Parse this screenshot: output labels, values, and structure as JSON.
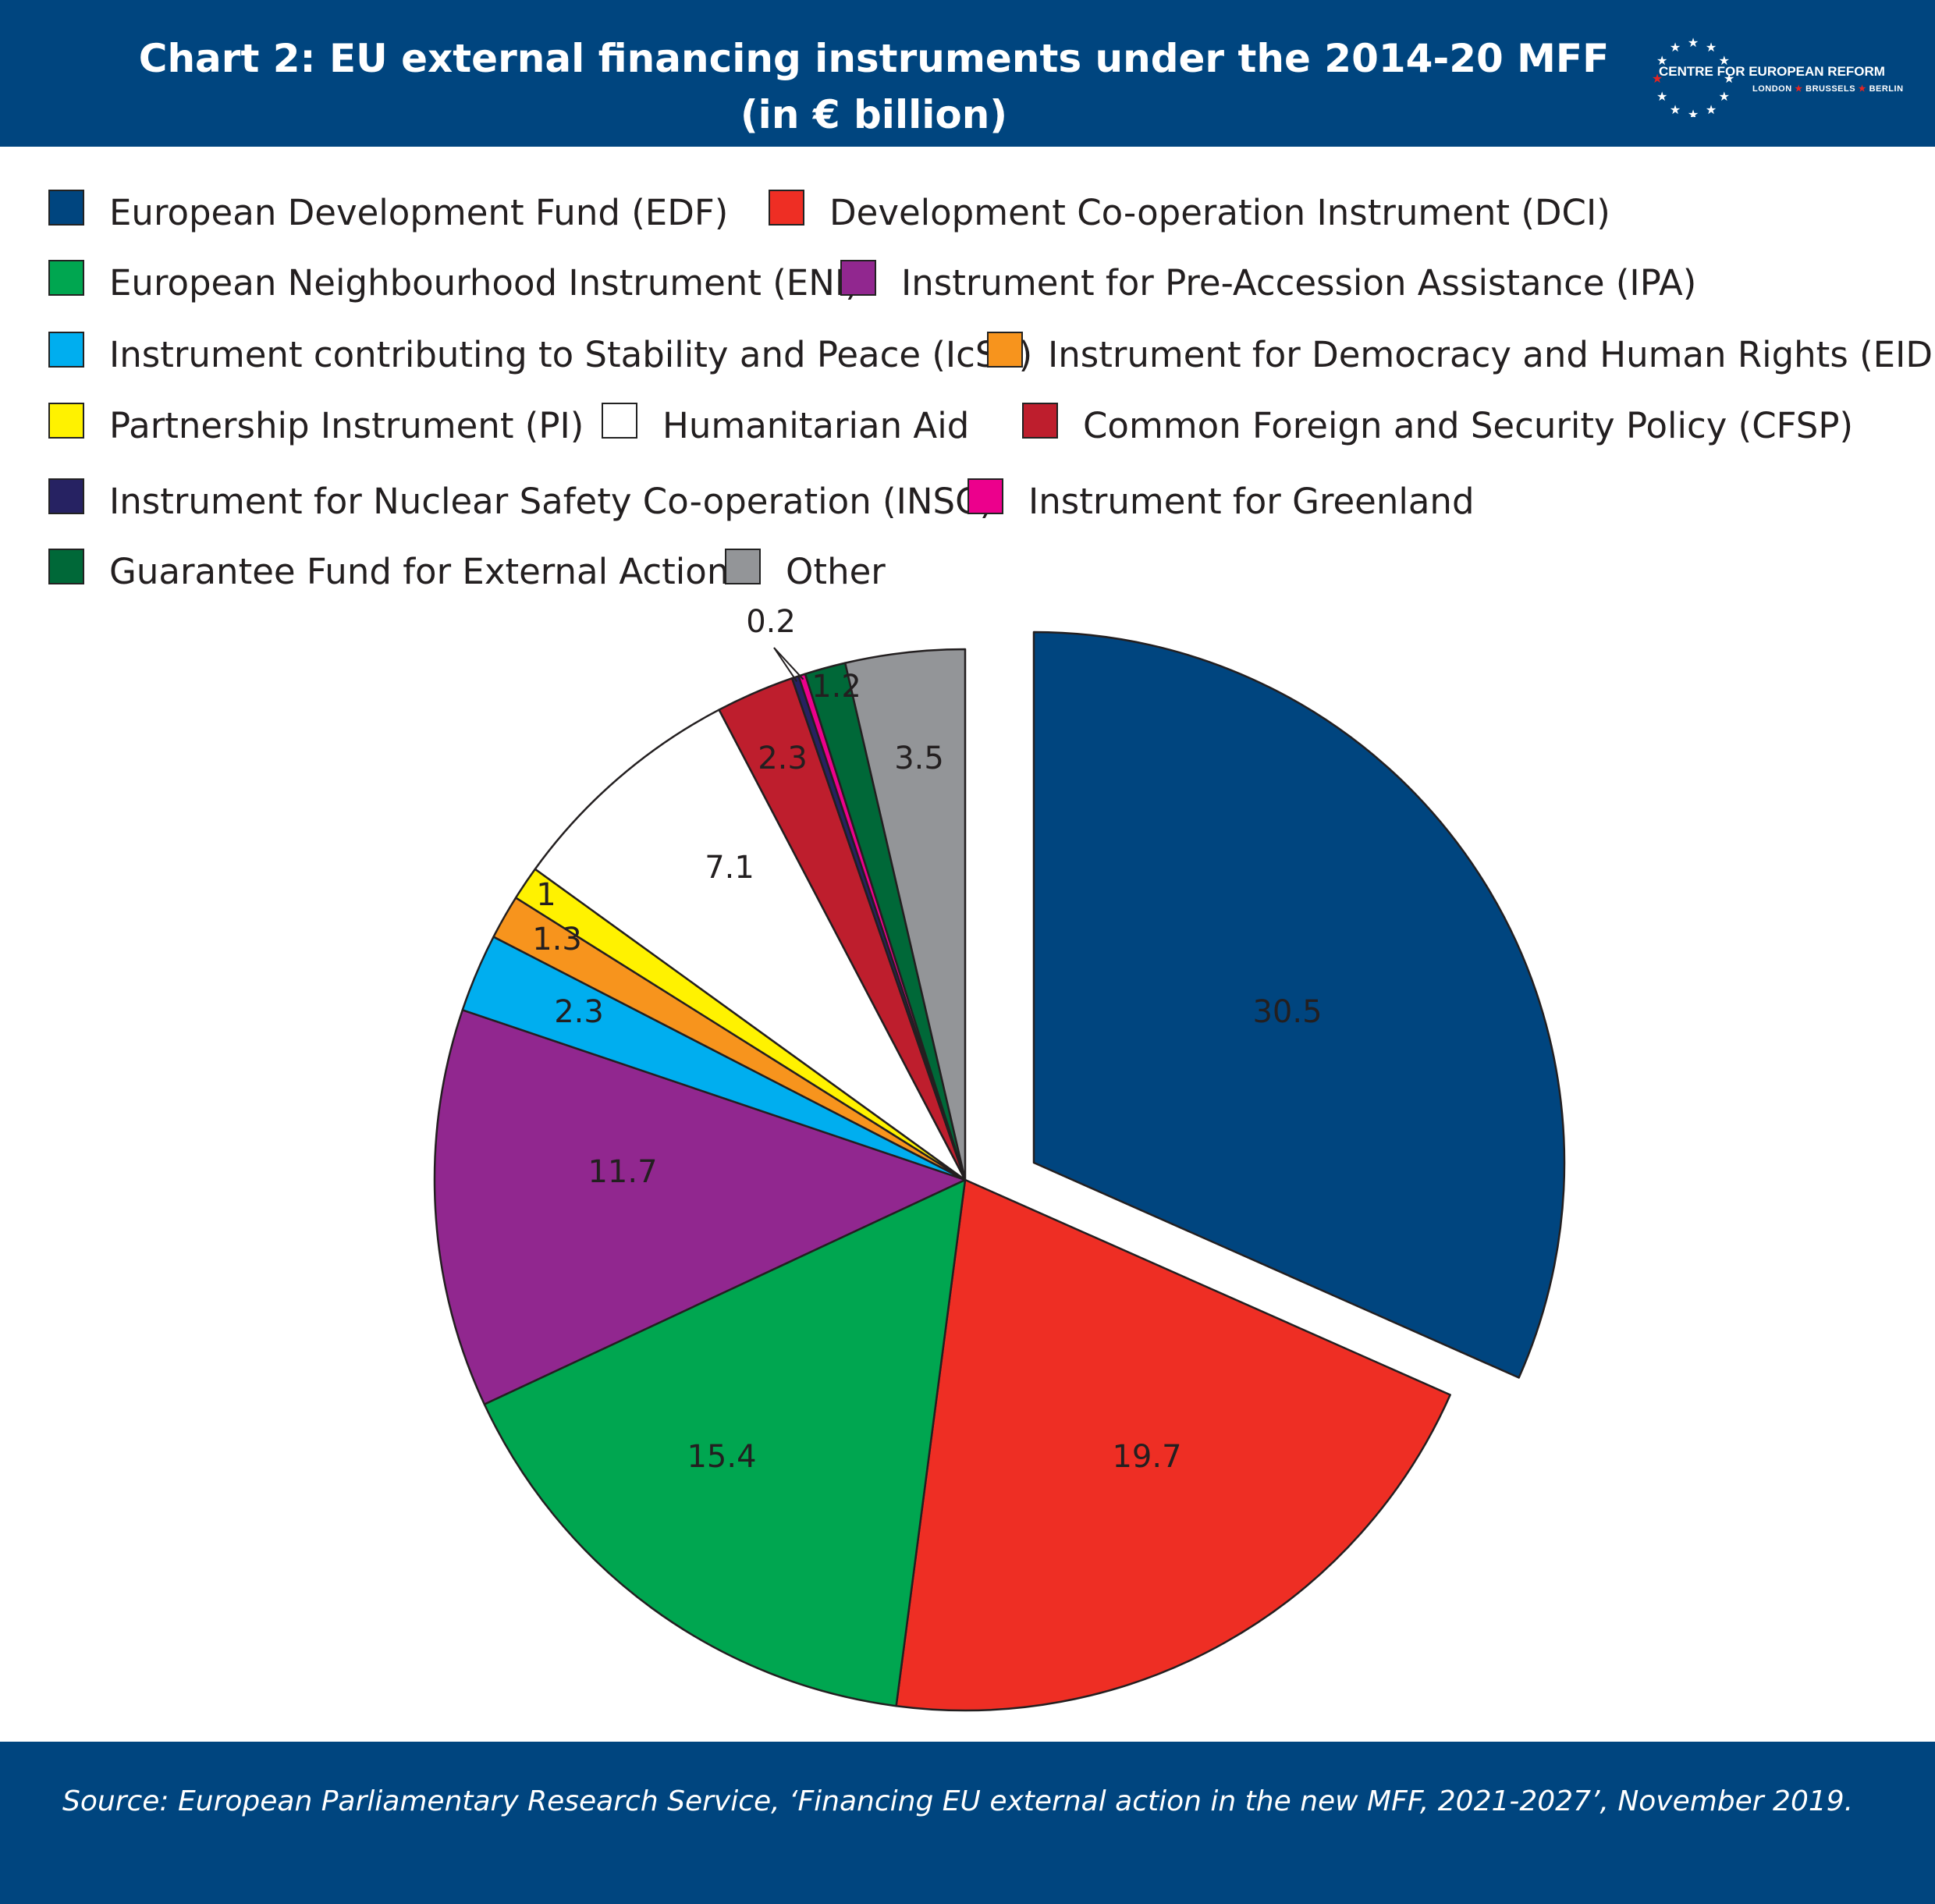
{
  "header": {
    "title_line1": "Chart 2: EU external financing instruments under the 2014-20 MFF",
    "title_line2": "(in € billion)",
    "logo_name": "CENTRE FOR EUROPEAN REFORM",
    "logo_cities": [
      "LONDON",
      "BRUSSELS",
      "BERLIN"
    ]
  },
  "chart_data": {
    "type": "pie",
    "title": "Chart 2: EU external financing instruments under the 2014-20 MFF (in € billion)",
    "unit": "€ billion",
    "legend_placement": "top",
    "slices": [
      {
        "name": "European Development Fund (EDF)",
        "value": 30.5,
        "label": "30.5",
        "color": "#00457f",
        "exploded": true
      },
      {
        "name": "Development Co-operation Instrument (DCI)",
        "value": 19.7,
        "label": "19.7",
        "color": "#ee2e24"
      },
      {
        "name": "European Neighbourhood Instrument (ENI)",
        "value": 15.4,
        "label": "15.4",
        "color": "#00a650"
      },
      {
        "name": "Instrument for Pre-Accession Assistance (IPA)",
        "value": 11.7,
        "label": "11.7",
        "color": "#91278f"
      },
      {
        "name": "Instrument contributing to Stability and Peace (IcSP)",
        "value": 2.3,
        "label": "2.3",
        "color": "#00aeef"
      },
      {
        "name": "Instrument for Democracy and Human Rights (EIDHR)",
        "value": 1.3,
        "label": "1.3",
        "color": "#f7941d"
      },
      {
        "name": "Partnership Instrument (PI)",
        "value": 1,
        "label": "1",
        "color": "#fff200"
      },
      {
        "name": "Humanitarian Aid",
        "value": 7.1,
        "label": "7.1",
        "color": "#ffffff"
      },
      {
        "name": "Common Foreign and Security Policy (CFSP)",
        "value": 2.3,
        "label": "2.3",
        "color": "#be1e2d"
      },
      {
        "name": "Instrument for Nuclear Safety Co-operation (INSC)",
        "value": 0.2,
        "label": "0.2",
        "color": "#262262"
      },
      {
        "name": "Instrument for Greenland",
        "value": 0.2,
        "label": "",
        "color": "#ec008c"
      },
      {
        "name": "Guarantee Fund for External Actions",
        "value": 1.2,
        "label": "1.2",
        "color": "#006838"
      },
      {
        "name": "Other",
        "value": 3.5,
        "label": "3.5",
        "color": "#939598"
      }
    ]
  },
  "source": "Source: European Parliamentary Research Service, ‘Financing EU external action in the new MFF, 2021-2027’, November 2019."
}
